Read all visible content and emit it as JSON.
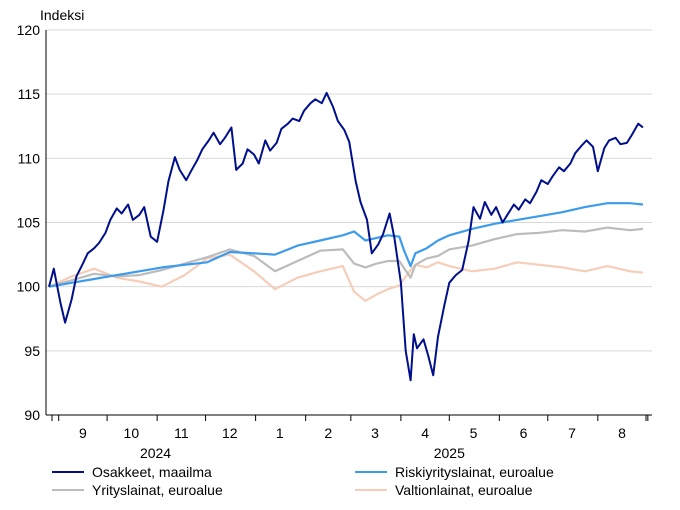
{
  "chart_data": {
    "type": "line",
    "ylabel": "Indeksi",
    "ylim": [
      90,
      120
    ],
    "yticks": [
      90,
      95,
      100,
      105,
      110,
      115,
      120
    ],
    "grid": true,
    "legend_position": "bottom",
    "x_months": [
      "9",
      "10",
      "11",
      "12",
      "1",
      "2",
      "3",
      "4",
      "5",
      "6",
      "7",
      "8"
    ],
    "x_years": [
      "2024",
      "2025"
    ],
    "x_range": [
      "2024-08-26",
      "2025-08-29"
    ],
    "series": [
      {
        "name": "Osakkeet, maailma",
        "color": "#000f8c",
        "points": [
          [
            "2024-08-26",
            100.0
          ],
          [
            "2024-08-29",
            101.4
          ],
          [
            "2024-09-02",
            98.8
          ],
          [
            "2024-09-05",
            97.2
          ],
          [
            "2024-09-09",
            99.0
          ],
          [
            "2024-09-12",
            100.8
          ],
          [
            "2024-09-16",
            101.8
          ],
          [
            "2024-09-19",
            102.6
          ],
          [
            "2024-09-23",
            103.0
          ],
          [
            "2024-09-26",
            103.4
          ],
          [
            "2024-09-30",
            104.2
          ],
          [
            "2024-10-03",
            105.2
          ],
          [
            "2024-10-07",
            106.1
          ],
          [
            "2024-10-10",
            105.7
          ],
          [
            "2024-10-14",
            106.4
          ],
          [
            "2024-10-17",
            105.2
          ],
          [
            "2024-10-21",
            105.6
          ],
          [
            "2024-10-24",
            106.2
          ],
          [
            "2024-10-28",
            103.9
          ],
          [
            "2024-11-01",
            103.5
          ],
          [
            "2024-11-05",
            106.0
          ],
          [
            "2024-11-08",
            108.2
          ],
          [
            "2024-11-12",
            110.1
          ],
          [
            "2024-11-15",
            109.1
          ],
          [
            "2024-11-19",
            108.3
          ],
          [
            "2024-11-22",
            109.0
          ],
          [
            "2024-11-26",
            109.9
          ],
          [
            "2024-11-29",
            110.7
          ],
          [
            "2024-12-03",
            111.4
          ],
          [
            "2024-12-06",
            112.0
          ],
          [
            "2024-12-10",
            111.1
          ],
          [
            "2024-12-13",
            111.6
          ],
          [
            "2024-12-17",
            112.4
          ],
          [
            "2024-12-20",
            109.1
          ],
          [
            "2024-12-24",
            109.6
          ],
          [
            "2024-12-27",
            110.7
          ],
          [
            "2024-12-31",
            110.3
          ],
          [
            "2025-01-03",
            109.6
          ],
          [
            "2025-01-07",
            111.4
          ],
          [
            "2025-01-10",
            110.6
          ],
          [
            "2025-01-14",
            111.2
          ],
          [
            "2025-01-17",
            112.3
          ],
          [
            "2025-01-21",
            112.7
          ],
          [
            "2025-01-24",
            113.1
          ],
          [
            "2025-01-28",
            112.9
          ],
          [
            "2025-01-31",
            113.7
          ],
          [
            "2025-02-04",
            114.3
          ],
          [
            "2025-02-07",
            114.6
          ],
          [
            "2025-02-11",
            114.3
          ],
          [
            "2025-02-14",
            115.1
          ],
          [
            "2025-02-18",
            114.0
          ],
          [
            "2025-02-21",
            112.9
          ],
          [
            "2025-02-25",
            112.2
          ],
          [
            "2025-02-28",
            111.3
          ],
          [
            "2025-03-04",
            108.2
          ],
          [
            "2025-03-07",
            106.6
          ],
          [
            "2025-03-11",
            105.2
          ],
          [
            "2025-03-14",
            102.6
          ],
          [
            "2025-03-18",
            103.3
          ],
          [
            "2025-03-21",
            104.1
          ],
          [
            "2025-03-25",
            105.7
          ],
          [
            "2025-03-28",
            103.8
          ],
          [
            "2025-04-01",
            100.3
          ],
          [
            "2025-04-04",
            95.0
          ],
          [
            "2025-04-07",
            92.7
          ],
          [
            "2025-04-09",
            96.3
          ],
          [
            "2025-04-11",
            95.2
          ],
          [
            "2025-04-15",
            95.9
          ],
          [
            "2025-04-18",
            94.6
          ],
          [
            "2025-04-21",
            93.1
          ],
          [
            "2025-04-24",
            96.1
          ],
          [
            "2025-04-28",
            98.6
          ],
          [
            "2025-05-01",
            100.3
          ],
          [
            "2025-05-05",
            100.9
          ],
          [
            "2025-05-09",
            101.3
          ],
          [
            "2025-05-13",
            103.6
          ],
          [
            "2025-05-16",
            106.2
          ],
          [
            "2025-05-20",
            105.3
          ],
          [
            "2025-05-23",
            106.6
          ],
          [
            "2025-05-27",
            105.6
          ],
          [
            "2025-05-30",
            106.2
          ],
          [
            "2025-06-03",
            105.0
          ],
          [
            "2025-06-06",
            105.6
          ],
          [
            "2025-06-10",
            106.4
          ],
          [
            "2025-06-13",
            106.0
          ],
          [
            "2025-06-17",
            106.8
          ],
          [
            "2025-06-20",
            106.5
          ],
          [
            "2025-06-24",
            107.4
          ],
          [
            "2025-06-27",
            108.3
          ],
          [
            "2025-07-01",
            108.0
          ],
          [
            "2025-07-04",
            108.6
          ],
          [
            "2025-07-08",
            109.3
          ],
          [
            "2025-07-11",
            109.0
          ],
          [
            "2025-07-15",
            109.6
          ],
          [
            "2025-07-18",
            110.4
          ],
          [
            "2025-07-22",
            111.0
          ],
          [
            "2025-07-25",
            111.4
          ],
          [
            "2025-07-29",
            110.9
          ],
          [
            "2025-08-01",
            109.0
          ],
          [
            "2025-08-05",
            110.8
          ],
          [
            "2025-08-08",
            111.4
          ],
          [
            "2025-08-12",
            111.6
          ],
          [
            "2025-08-15",
            111.1
          ],
          [
            "2025-08-19",
            111.2
          ],
          [
            "2025-08-22",
            111.8
          ],
          [
            "2025-08-26",
            112.7
          ],
          [
            "2025-08-29",
            112.4
          ]
        ]
      },
      {
        "name": "Riskiyrityslainat, euroalue",
        "color": "#3d9bec",
        "points": [
          [
            "2024-08-26",
            100.0
          ],
          [
            "2024-09-09",
            100.3
          ],
          [
            "2024-09-23",
            100.6
          ],
          [
            "2024-10-07",
            100.9
          ],
          [
            "2024-10-21",
            101.2
          ],
          [
            "2024-11-04",
            101.5
          ],
          [
            "2024-11-18",
            101.7
          ],
          [
            "2024-12-02",
            101.9
          ],
          [
            "2024-12-16",
            102.7
          ],
          [
            "2024-12-31",
            102.6
          ],
          [
            "2025-01-13",
            102.5
          ],
          [
            "2025-01-27",
            103.2
          ],
          [
            "2025-02-10",
            103.6
          ],
          [
            "2025-02-24",
            104.0
          ],
          [
            "2025-03-03",
            104.3
          ],
          [
            "2025-03-10",
            103.6
          ],
          [
            "2025-03-17",
            103.8
          ],
          [
            "2025-03-24",
            104.0
          ],
          [
            "2025-03-31",
            103.9
          ],
          [
            "2025-04-03",
            102.8
          ],
          [
            "2025-04-07",
            101.6
          ],
          [
            "2025-04-10",
            102.6
          ],
          [
            "2025-04-17",
            103.0
          ],
          [
            "2025-04-24",
            103.6
          ],
          [
            "2025-05-01",
            104.0
          ],
          [
            "2025-05-15",
            104.5
          ],
          [
            "2025-05-29",
            104.9
          ],
          [
            "2025-06-12",
            105.2
          ],
          [
            "2025-06-26",
            105.5
          ],
          [
            "2025-07-10",
            105.8
          ],
          [
            "2025-07-24",
            106.2
          ],
          [
            "2025-08-07",
            106.5
          ],
          [
            "2025-08-21",
            106.5
          ],
          [
            "2025-08-29",
            106.4
          ]
        ]
      },
      {
        "name": "Yrityslainat, euroalue",
        "color": "#bcbcbc",
        "points": [
          [
            "2024-08-26",
            100.0
          ],
          [
            "2024-09-09",
            100.5
          ],
          [
            "2024-09-23",
            101.0
          ],
          [
            "2024-10-07",
            100.8
          ],
          [
            "2024-10-21",
            100.9
          ],
          [
            "2024-11-04",
            101.3
          ],
          [
            "2024-11-18",
            101.8
          ],
          [
            "2024-12-02",
            102.3
          ],
          [
            "2024-12-16",
            102.9
          ],
          [
            "2024-12-31",
            102.4
          ],
          [
            "2025-01-13",
            101.2
          ],
          [
            "2025-01-27",
            102.0
          ],
          [
            "2025-02-10",
            102.8
          ],
          [
            "2025-02-24",
            102.9
          ],
          [
            "2025-03-03",
            101.8
          ],
          [
            "2025-03-10",
            101.5
          ],
          [
            "2025-03-17",
            101.8
          ],
          [
            "2025-03-24",
            102.0
          ],
          [
            "2025-03-31",
            102.0
          ],
          [
            "2025-04-07",
            100.7
          ],
          [
            "2025-04-10",
            101.7
          ],
          [
            "2025-04-17",
            102.2
          ],
          [
            "2025-04-24",
            102.4
          ],
          [
            "2025-05-01",
            102.9
          ],
          [
            "2025-05-15",
            103.2
          ],
          [
            "2025-05-29",
            103.7
          ],
          [
            "2025-06-12",
            104.1
          ],
          [
            "2025-06-26",
            104.2
          ],
          [
            "2025-07-10",
            104.4
          ],
          [
            "2025-07-24",
            104.3
          ],
          [
            "2025-08-07",
            104.6
          ],
          [
            "2025-08-21",
            104.4
          ],
          [
            "2025-08-29",
            104.5
          ]
        ]
      },
      {
        "name": "Valtionlainat, euroalue",
        "color": "#f6cdb9",
        "points": [
          [
            "2024-08-26",
            100.0
          ],
          [
            "2024-09-09",
            100.8
          ],
          [
            "2024-09-23",
            101.4
          ],
          [
            "2024-10-07",
            100.7
          ],
          [
            "2024-10-21",
            100.4
          ],
          [
            "2024-11-04",
            100.0
          ],
          [
            "2024-11-18",
            100.9
          ],
          [
            "2024-12-02",
            102.2
          ],
          [
            "2024-12-16",
            102.5
          ],
          [
            "2024-12-31",
            101.2
          ],
          [
            "2025-01-13",
            99.8
          ],
          [
            "2025-01-27",
            100.7
          ],
          [
            "2025-02-10",
            101.2
          ],
          [
            "2025-02-24",
            101.6
          ],
          [
            "2025-03-03",
            99.6
          ],
          [
            "2025-03-10",
            98.9
          ],
          [
            "2025-03-17",
            99.4
          ],
          [
            "2025-03-24",
            99.8
          ],
          [
            "2025-03-31",
            100.1
          ],
          [
            "2025-04-07",
            101.3
          ],
          [
            "2025-04-10",
            101.7
          ],
          [
            "2025-04-17",
            101.5
          ],
          [
            "2025-04-24",
            101.9
          ],
          [
            "2025-05-01",
            101.6
          ],
          [
            "2025-05-15",
            101.2
          ],
          [
            "2025-05-29",
            101.4
          ],
          [
            "2025-06-12",
            101.9
          ],
          [
            "2025-06-26",
            101.7
          ],
          [
            "2025-07-10",
            101.5
          ],
          [
            "2025-07-24",
            101.2
          ],
          [
            "2025-08-07",
            101.6
          ],
          [
            "2025-08-21",
            101.2
          ],
          [
            "2025-08-29",
            101.1
          ]
        ]
      }
    ]
  }
}
